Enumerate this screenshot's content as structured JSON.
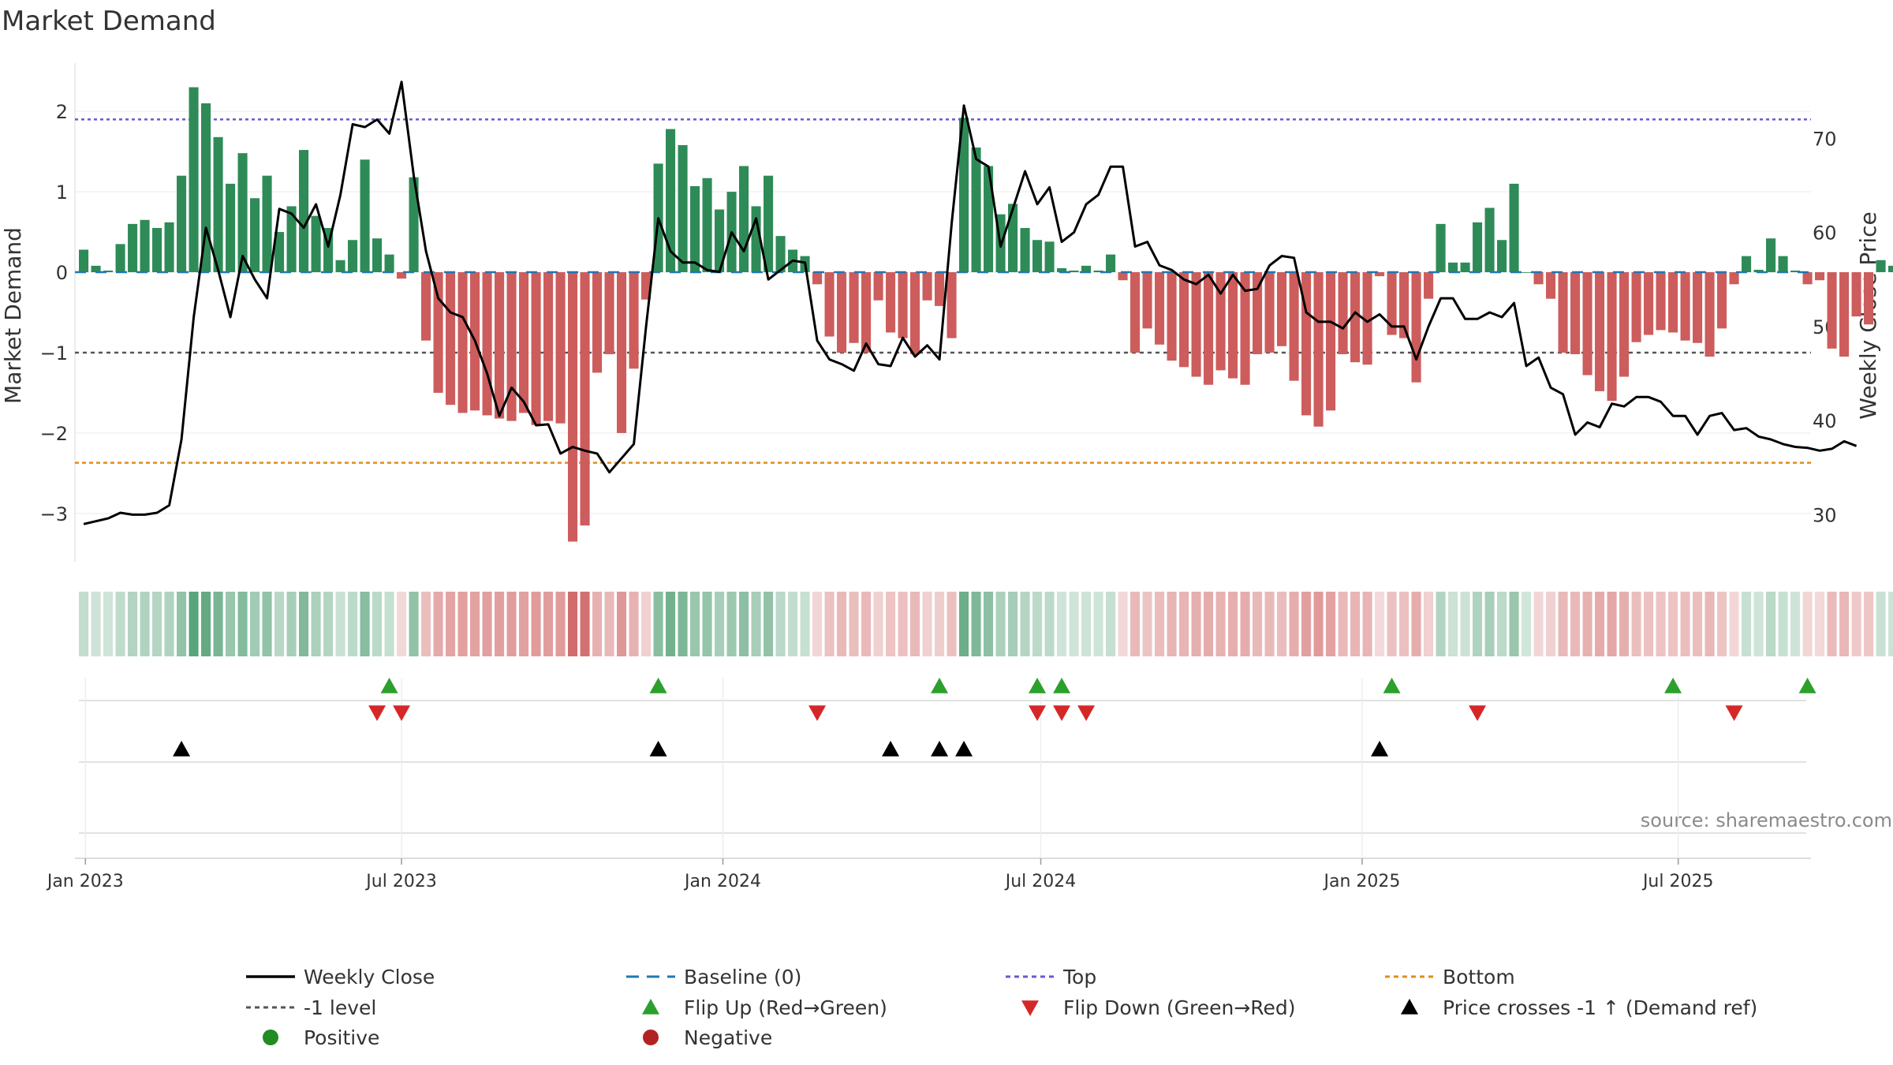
{
  "chart_data": {
    "type": "bar",
    "title": "Market Demand",
    "ylabel_left": "Market Demand",
    "ylabel_right": "Weekly Close Price",
    "source": "source: sharemaestro.com",
    "ylim_left": [
      -3.6,
      2.6
    ],
    "ylim_right": [
      25,
      78
    ],
    "x_start": "2022-12-26",
    "x_end": "2025-09-15",
    "x_tick_labels": [
      {
        "date": "2023-01-01",
        "label": "Jan 2023"
      },
      {
        "date": "2023-07-01",
        "label": "Jul 2023"
      },
      {
        "date": "2024-01-01",
        "label": "Jan 2024"
      },
      {
        "date": "2024-07-01",
        "label": "Jul 2024"
      },
      {
        "date": "2025-01-01",
        "label": "Jan 2025"
      },
      {
        "date": "2025-07-01",
        "label": "Jul 2025"
      }
    ],
    "y_tick_labels_left": [
      {
        "v": 2,
        "label": "2"
      },
      {
        "v": 1,
        "label": "1"
      },
      {
        "v": 0,
        "label": "0"
      },
      {
        "v": -1,
        "label": "−1"
      },
      {
        "v": -2,
        "label": "−2"
      },
      {
        "v": -3,
        "label": "−3"
      }
    ],
    "y_tick_labels_right": [
      {
        "v": 70,
        "label": "70"
      },
      {
        "v": 60,
        "label": "60"
      },
      {
        "v": 50,
        "label": "50"
      },
      {
        "v": 40,
        "label": "40"
      },
      {
        "v": 30,
        "label": "30"
      }
    ],
    "reference_lines": {
      "top": 1.9,
      "minus_one": -1.0,
      "bottom": -2.37,
      "baseline": 0
    },
    "colors": {
      "positive_bar": "#2e8b57",
      "negative_bar": "#cd5c5c",
      "close_line": "#000000",
      "baseline": "#1f77b4",
      "top_line": "#6a5acd",
      "minus_one_line": "#555555",
      "bottom_line": "#e08c1a",
      "flip_up": "#2ca02c",
      "flip_down": "#d62728",
      "price_cross": "#000000",
      "positive_dot": "#228b22",
      "negative_dot": "#b22222"
    },
    "series": [
      {
        "name": "Market Demand",
        "start_date": "2022-12-31",
        "interval_days": 7,
        "values": [
          0.28,
          0.08,
          0.02,
          0.35,
          0.6,
          0.65,
          0.55,
          0.62,
          1.2,
          2.3,
          2.1,
          1.68,
          1.1,
          1.48,
          0.92,
          1.2,
          0.5,
          0.82,
          1.52,
          0.7,
          0.55,
          0.15,
          0.4,
          1.4,
          0.42,
          0.22,
          -0.08,
          1.18,
          -0.85,
          -1.5,
          -1.65,
          -1.75,
          -1.72,
          -1.78,
          -1.82,
          -1.85,
          -1.75,
          -1.9,
          -1.85,
          -1.88,
          -3.35,
          -3.15,
          -1.25,
          -1.02,
          -2.0,
          -1.2,
          -0.34,
          1.35,
          1.78,
          1.58,
          1.07,
          1.17,
          0.78,
          1.0,
          1.32,
          0.82,
          1.2,
          0.45,
          0.28,
          0.2,
          -0.15,
          -0.8,
          -1.0,
          -0.88,
          -1.0,
          -0.35,
          -0.75,
          -0.82,
          -1.02,
          -0.35,
          -0.42,
          -0.82,
          1.92,
          1.55,
          1.32,
          0.72,
          0.85,
          0.55,
          0.4,
          0.38,
          0.05,
          0.02,
          0.08,
          0.02,
          0.22,
          -0.1,
          -1.0,
          -0.7,
          -0.9,
          -1.1,
          -1.18,
          -1.3,
          -1.4,
          -1.22,
          -1.32,
          -1.4,
          -1.02,
          -1.0,
          -0.92,
          -1.35,
          -1.78,
          -1.92,
          -1.72,
          -1.02,
          -1.12,
          -1.15,
          -0.05,
          -0.78,
          -0.82,
          -1.37,
          -0.33,
          0.6,
          0.12,
          0.12,
          0.62,
          0.8,
          0.4,
          1.1,
          0.0,
          -0.15,
          -0.33,
          -1.0,
          -1.02,
          -1.28,
          -1.48,
          -1.6,
          -1.3,
          -0.87,
          -0.78,
          -0.72,
          -0.75,
          -0.85,
          -0.88,
          -1.05,
          -0.7,
          -0.15,
          0.2,
          0.03,
          0.42,
          0.2,
          0.02,
          -0.15,
          -0.1,
          -0.95,
          -1.05,
          -0.55,
          -0.65,
          0.15,
          0.08
        ]
      },
      {
        "name": "Weekly Close",
        "start_date": "2022-12-31",
        "interval_days": 7,
        "values": [
          29.0,
          29.3,
          29.6,
          30.2,
          30.0,
          30.0,
          30.2,
          31.0,
          38.0,
          51.0,
          60.5,
          56.0,
          51.0,
          57.5,
          55.0,
          53.0,
          62.5,
          62.0,
          60.5,
          63.0,
          58.5,
          64.0,
          71.5,
          71.2,
          72.0,
          70.5,
          76.0,
          66.0,
          58.0,
          53.0,
          51.5,
          51.0,
          48.5,
          45.0,
          40.5,
          43.5,
          42.0,
          39.5,
          39.6,
          36.5,
          37.2,
          36.8,
          36.5,
          34.5,
          36.0,
          37.5,
          50.0,
          61.5,
          58.0,
          56.8,
          56.8,
          56.0,
          55.8,
          60.0,
          58.0,
          61.5,
          55.0,
          56.0,
          57.0,
          56.8,
          48.5,
          46.5,
          46.0,
          45.3,
          48.2,
          46.0,
          45.8,
          48.8,
          46.8,
          48.0,
          46.5,
          61.0,
          73.5,
          67.8,
          67.0,
          58.5,
          62.5,
          66.5,
          63.0,
          64.8,
          59.0,
          60.0,
          63.0,
          64.0,
          67.0,
          67.0,
          58.5,
          59.0,
          56.5,
          56.0,
          55.0,
          54.5,
          55.5,
          53.5,
          55.5,
          53.8,
          54.0,
          56.5,
          57.5,
          57.3,
          51.5,
          50.5,
          50.5,
          49.8,
          51.5,
          50.5,
          51.3,
          50.0,
          50.0,
          46.5,
          50.0,
          53.0,
          53.0,
          50.8,
          50.8,
          51.5,
          51.0,
          52.5,
          45.8,
          46.7,
          43.5,
          42.8,
          38.5,
          39.8,
          39.3,
          41.8,
          41.5,
          42.5,
          42.5,
          42.0,
          40.5,
          40.5,
          38.5,
          40.5,
          40.8,
          39.0,
          39.2,
          38.3,
          38.0,
          37.5,
          37.2,
          37.1,
          36.8,
          37.0,
          37.8,
          37.3
        ]
      }
    ],
    "markers": {
      "flip_up": [
        "2023-06-24",
        "2023-11-25",
        "2024-05-04",
        "2024-06-29",
        "2024-07-13",
        "2025-01-18",
        "2025-06-28",
        "2025-09-13"
      ],
      "flip_down": [
        "2023-06-17",
        "2023-07-01",
        "2024-02-24",
        "2024-06-29",
        "2024-07-13",
        "2024-07-27",
        "2025-03-08",
        "2025-08-02"
      ],
      "price_crosses": [
        "2023-02-25",
        "2023-11-25",
        "2024-04-06",
        "2024-05-04",
        "2024-05-18",
        "2025-01-11"
      ]
    },
    "legend": {
      "placement": "bottom",
      "items": [
        {
          "label": "Weekly Close",
          "symbol": "line",
          "color": "#000000"
        },
        {
          "label": "Baseline (0)",
          "symbol": "dash",
          "color": "#1f77b4"
        },
        {
          "label": "Top",
          "symbol": "dot",
          "color": "#6a5acd"
        },
        {
          "label": "Bottom",
          "symbol": "dot",
          "color": "#e08c1a"
        },
        {
          "label": "-1 level",
          "symbol": "dot",
          "color": "#555555"
        },
        {
          "label": "Flip Up (Red→Green)",
          "symbol": "tri-up",
          "color": "#2ca02c"
        },
        {
          "label": "Flip Down (Green→Red)",
          "symbol": "tri-down",
          "color": "#d62728"
        },
        {
          "label": "Price crosses -1 ↑ (Demand ref)",
          "symbol": "tri-up",
          "color": "#000000"
        },
        {
          "label": "Positive",
          "symbol": "circle",
          "color": "#228b22"
        },
        {
          "label": "Negative",
          "symbol": "circle",
          "color": "#b22222"
        }
      ]
    }
  }
}
